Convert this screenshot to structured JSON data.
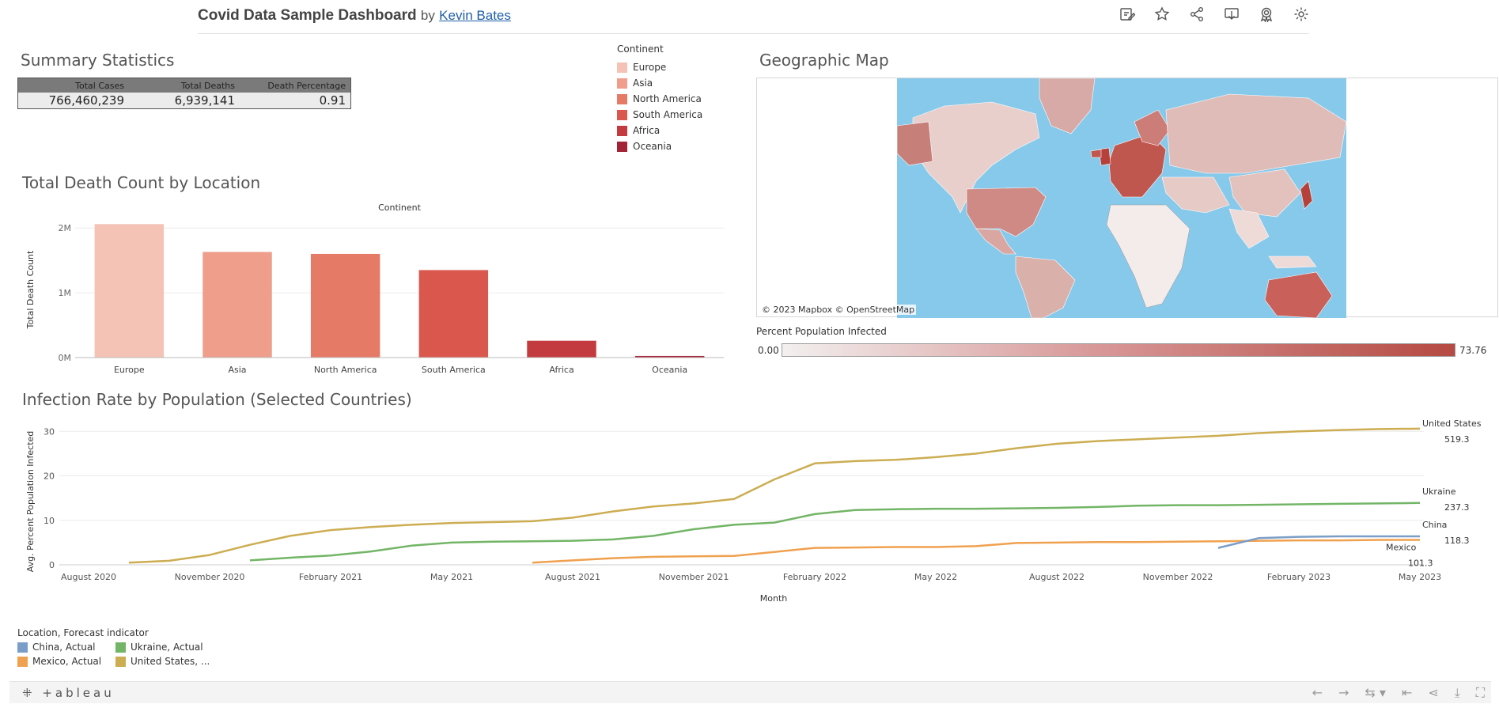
{
  "header": {
    "title": "Covid Data Sample Dashboard",
    "by": "by",
    "author": "Kevin Bates",
    "icons": [
      "edit-icon",
      "star-icon",
      "share-icon",
      "download-icon",
      "award-icon",
      "gear-icon"
    ]
  },
  "summary": {
    "title": "Summary Statistics",
    "headers": [
      "Total Cases",
      "Total Deaths",
      "Death Percentage"
    ],
    "values": [
      "766,460,239",
      "6,939,141",
      "0.91"
    ]
  },
  "continent_legend": {
    "title": "Continent",
    "items": [
      {
        "label": "Europe",
        "color": "#f4c3b6"
      },
      {
        "label": "Asia",
        "color": "#ee9e8a"
      },
      {
        "label": "North America",
        "color": "#e57b66"
      },
      {
        "label": "South America",
        "color": "#d9574c"
      },
      {
        "label": "Africa",
        "color": "#c43b3f"
      },
      {
        "label": "Oceania",
        "color": "#a32436"
      }
    ]
  },
  "map": {
    "title": "Geographic Map",
    "credit": "© 2023 Mapbox  © OpenStreetMap",
    "gradient_title": "Percent Population Infected",
    "gradient_min": "0.00",
    "gradient_max": "73.76"
  },
  "death_chart_title": "Total Death Count by Location",
  "infection_chart_title": "Infection Rate by Population (Selected Countries)",
  "location_legend": {
    "title": "Location, Forecast indicator",
    "items": [
      {
        "label": "China, Actual",
        "color": "#7a9ec8"
      },
      {
        "label": "Ukraine, Actual",
        "color": "#73b566"
      },
      {
        "label": "Mexico, Actual",
        "color": "#f0a14f"
      },
      {
        "label": "United States, ...",
        "color": "#ccad52"
      }
    ]
  },
  "footer": {
    "brand": "+ableau"
  },
  "chart_data": [
    {
      "type": "bar",
      "title": "Total Death Count by Location",
      "header": "Continent",
      "ylabel": "Total Death Count",
      "categories": [
        "Europe",
        "Asia",
        "North America",
        "South America",
        "Africa",
        "Oceania"
      ],
      "values": [
        2060000,
        1630000,
        1600000,
        1350000,
        260000,
        25000
      ],
      "colors": [
        "#f4c3b6",
        "#ee9e8a",
        "#e57b66",
        "#d9574c",
        "#c43b3f",
        "#a32436"
      ],
      "yticks": [
        {
          "v": 0,
          "label": "0M"
        },
        {
          "v": 1000000,
          "label": "1M"
        },
        {
          "v": 2000000,
          "label": "2M"
        }
      ],
      "ylim": [
        0,
        2100000
      ]
    },
    {
      "type": "line",
      "title": "Infection Rate by Population (Selected Countries)",
      "xlabel": "Month",
      "ylabel": "Avg. Percent Population Infected",
      "xticks": [
        "August 2020",
        "November 2020",
        "February 2021",
        "May 2021",
        "August 2021",
        "November 2021",
        "February 2022",
        "May 2022",
        "August 2022",
        "November 2022",
        "February 2023",
        "May 2023"
      ],
      "yticks": [
        0,
        10,
        20,
        30
      ],
      "ylim": [
        0,
        32
      ],
      "series": [
        {
          "name": "United States",
          "end_label": "United States",
          "end_value": "519.3",
          "color": "#ccad52",
          "start_month": "2020-09",
          "values": [
            0.5,
            0.9,
            2.2,
            4.5,
            6.5,
            7.8,
            8.5,
            9.0,
            9.4,
            9.6,
            9.8,
            10.6,
            12.0,
            13.1,
            13.8,
            14.8,
            19.2,
            22.8,
            23.3,
            23.6,
            24.2,
            25.0,
            26.2,
            27.2,
            27.8,
            28.2,
            28.6,
            29.0,
            29.6,
            30.0,
            30.3,
            30.5,
            30.6
          ]
        },
        {
          "name": "Ukraine",
          "end_label": "Ukraine",
          "end_value": "237.3",
          "color": "#73b566",
          "start_month": "2020-12",
          "values": [
            1.0,
            1.6,
            2.1,
            3.0,
            4.3,
            5.0,
            5.2,
            5.3,
            5.4,
            5.7,
            6.5,
            8.0,
            9.0,
            9.5,
            11.4,
            12.3,
            12.5,
            12.6,
            12.6,
            12.7,
            12.8,
            13.0,
            13.3,
            13.4,
            13.4,
            13.5,
            13.6,
            13.7,
            13.8,
            13.9
          ]
        },
        {
          "name": "Mexico",
          "end_label": "Mexico",
          "end_value": "101.3",
          "color": "#f0a14f",
          "start_month": "2021-07",
          "values": [
            0.5,
            1.0,
            1.5,
            1.8,
            1.9,
            2.0,
            2.9,
            3.8,
            3.9,
            4.0,
            4.0,
            4.2,
            4.9,
            5.0,
            5.1,
            5.1,
            5.2,
            5.3,
            5.4,
            5.5,
            5.5,
            5.6,
            5.6
          ]
        },
        {
          "name": "China",
          "end_label": "China",
          "end_value": "118.3",
          "color": "#7a9ec8",
          "start_month": "2022-12",
          "values": [
            3.8,
            6.0,
            6.3,
            6.4,
            6.4,
            6.4
          ]
        }
      ]
    }
  ]
}
